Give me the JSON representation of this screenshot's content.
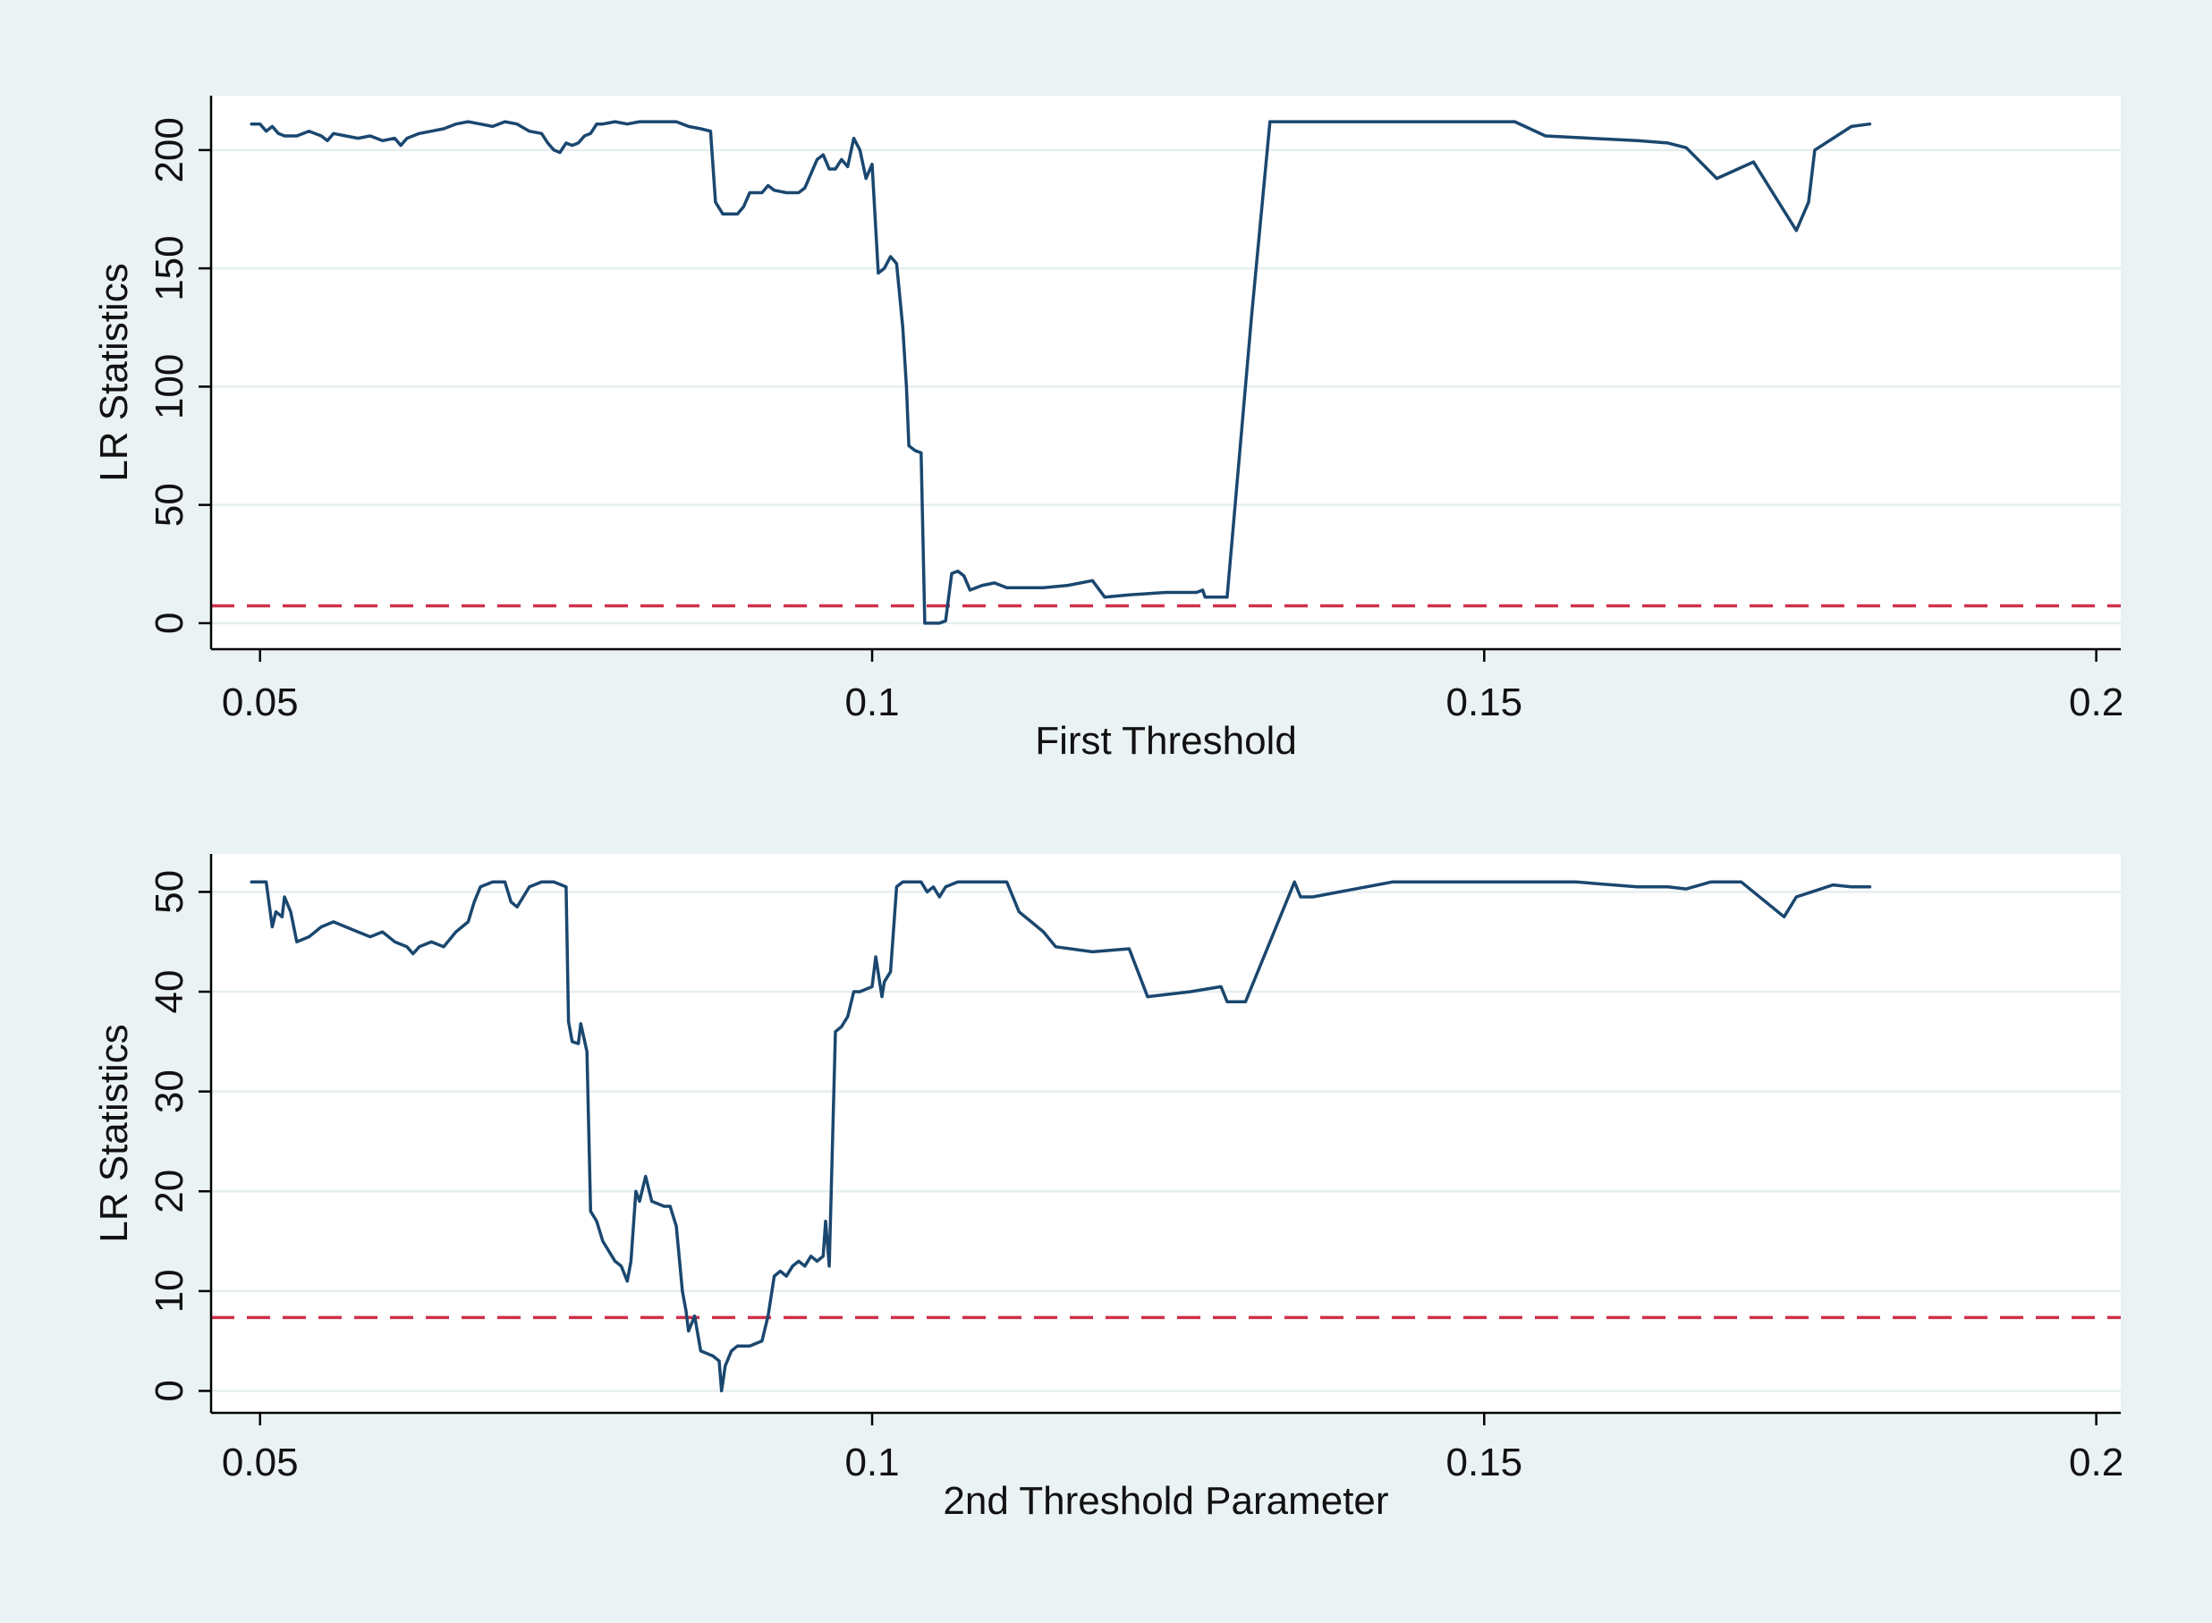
{
  "colors": {
    "outer_background": "#eaf2f3",
    "plot_background": "#ffffff",
    "gridline": "#e6eef0",
    "series_line": "#1a476f",
    "reference_line": "#d0304a",
    "axis": "#000000"
  },
  "chart_data": [
    {
      "type": "line",
      "title": "",
      "xlabel": "First Threshold",
      "ylabel": "LR Statistics",
      "xlim": [
        0.046,
        0.202
      ],
      "ylim": [
        -11,
        223
      ],
      "xticks": [
        0.05,
        0.1,
        0.15,
        0.2
      ],
      "xtick_labels": [
        "0.05",
        "0.1",
        "0.15",
        "0.2"
      ],
      "yticks": [
        0,
        50,
        100,
        150,
        200
      ],
      "ytick_labels": [
        "0",
        "50",
        "100",
        "150",
        "200"
      ],
      "grid": true,
      "reference_line": {
        "y": 7.35,
        "style": "dashed"
      },
      "series": [
        {
          "points": [
            [
              0.0493,
              211
            ],
            [
              0.05,
              211
            ],
            [
              0.0505,
              208
            ],
            [
              0.051,
              210
            ],
            [
              0.0515,
              207
            ],
            [
              0.052,
              206
            ],
            [
              0.053,
              206
            ],
            [
              0.054,
              208
            ],
            [
              0.055,
              206
            ],
            [
              0.0555,
              204
            ],
            [
              0.056,
              207
            ],
            [
              0.057,
              206
            ],
            [
              0.058,
              205
            ],
            [
              0.059,
              206
            ],
            [
              0.06,
              204
            ],
            [
              0.061,
              205
            ],
            [
              0.0615,
              202
            ],
            [
              0.062,
              205
            ],
            [
              0.063,
              207
            ],
            [
              0.064,
              208
            ],
            [
              0.065,
              209
            ],
            [
              0.066,
              211
            ],
            [
              0.067,
              212
            ],
            [
              0.068,
              211
            ],
            [
              0.069,
              210
            ],
            [
              0.07,
              212
            ],
            [
              0.071,
              211
            ],
            [
              0.072,
              208
            ],
            [
              0.073,
              207
            ],
            [
              0.0735,
              203
            ],
            [
              0.074,
              200
            ],
            [
              0.0745,
              199
            ],
            [
              0.075,
              203
            ],
            [
              0.0755,
              202
            ],
            [
              0.076,
              203
            ],
            [
              0.0765,
              206
            ],
            [
              0.077,
              207
            ],
            [
              0.0775,
              211
            ],
            [
              0.078,
              211
            ],
            [
              0.079,
              212
            ],
            [
              0.08,
              211
            ],
            [
              0.081,
              212
            ],
            [
              0.082,
              212
            ],
            [
              0.083,
              212
            ],
            [
              0.084,
              212
            ],
            [
              0.085,
              210
            ],
            [
              0.086,
              209
            ],
            [
              0.0868,
              208
            ],
            [
              0.0872,
              178
            ],
            [
              0.0878,
              173
            ],
            [
              0.089,
              173
            ],
            [
              0.0895,
              176
            ],
            [
              0.09,
              182
            ],
            [
              0.091,
              182
            ],
            [
              0.0915,
              185
            ],
            [
              0.092,
              183
            ],
            [
              0.093,
              182
            ],
            [
              0.094,
              182
            ],
            [
              0.0945,
              184
            ],
            [
              0.0955,
              196
            ],
            [
              0.096,
              198
            ],
            [
              0.0965,
              192
            ],
            [
              0.097,
              192
            ],
            [
              0.0975,
              196
            ],
            [
              0.098,
              193
            ],
            [
              0.0985,
              205
            ],
            [
              0.099,
              200
            ],
            [
              0.0995,
              188
            ],
            [
              0.1,
              194
            ],
            [
              0.1005,
              148
            ],
            [
              0.101,
              150
            ],
            [
              0.1015,
              155
            ],
            [
              0.102,
              152
            ],
            [
              0.1025,
              125
            ],
            [
              0.1028,
              100
            ],
            [
              0.103,
              75
            ],
            [
              0.1035,
              73
            ],
            [
              0.104,
              72
            ],
            [
              0.1043,
              0
            ],
            [
              0.1055,
              0
            ],
            [
              0.106,
              1
            ],
            [
              0.1065,
              21
            ],
            [
              0.107,
              22
            ],
            [
              0.1075,
              20
            ],
            [
              0.108,
              14
            ],
            [
              0.109,
              16
            ],
            [
              0.11,
              17
            ],
            [
              0.111,
              15
            ],
            [
              0.114,
              15
            ],
            [
              0.116,
              16
            ],
            [
              0.118,
              18
            ],
            [
              0.119,
              11
            ],
            [
              0.121,
              12
            ],
            [
              0.124,
              13
            ],
            [
              0.1265,
              13
            ],
            [
              0.127,
              14
            ],
            [
              0.1272,
              11
            ],
            [
              0.129,
              11
            ],
            [
              0.131,
              130
            ],
            [
              0.1325,
              212
            ],
            [
              0.14,
              212
            ],
            [
              0.15,
              212
            ],
            [
              0.1525,
              212
            ],
            [
              0.155,
              206
            ],
            [
              0.1625,
              204
            ],
            [
              0.165,
              203
            ],
            [
              0.1665,
              201
            ],
            [
              0.169,
              188
            ],
            [
              0.172,
              195
            ],
            [
              0.1755,
              166
            ],
            [
              0.1765,
              178
            ],
            [
              0.177,
              200
            ],
            [
              0.1785,
              205
            ],
            [
              0.18,
              210
            ],
            [
              0.1815,
              211
            ]
          ]
        }
      ]
    },
    {
      "type": "line",
      "title": "",
      "xlabel": "2nd Threshold Parameter",
      "ylabel": "LR Statistics",
      "xlim": [
        0.046,
        0.202
      ],
      "ylim": [
        -2.2,
        53.8
      ],
      "xticks": [
        0.05,
        0.1,
        0.15,
        0.2
      ],
      "xtick_labels": [
        "0.05",
        "0.1",
        "0.15",
        "0.2"
      ],
      "yticks": [
        0,
        10,
        20,
        30,
        40,
        50
      ],
      "ytick_labels": [
        "0",
        "10",
        "20",
        "30",
        "40",
        "50"
      ],
      "grid": true,
      "reference_line": {
        "y": 7.35,
        "style": "dashed"
      },
      "series": [
        {
          "points": [
            [
              0.0493,
              51
            ],
            [
              0.0505,
              51
            ],
            [
              0.051,
              46.5
            ],
            [
              0.0513,
              48
            ],
            [
              0.0518,
              47.5
            ],
            [
              0.052,
              49.5
            ],
            [
              0.0525,
              48
            ],
            [
              0.053,
              45
            ],
            [
              0.054,
              45.5
            ],
            [
              0.055,
              46.5
            ],
            [
              0.056,
              47
            ],
            [
              0.057,
              46.5
            ],
            [
              0.058,
              46
            ],
            [
              0.059,
              45.5
            ],
            [
              0.06,
              46
            ],
            [
              0.061,
              45
            ],
            [
              0.062,
              44.5
            ],
            [
              0.0625,
              43.8
            ],
            [
              0.063,
              44.5
            ],
            [
              0.064,
              45
            ],
            [
              0.065,
              44.5
            ],
            [
              0.066,
              46
            ],
            [
              0.067,
              47
            ],
            [
              0.0675,
              49
            ],
            [
              0.068,
              50.5
            ],
            [
              0.069,
              51
            ],
            [
              0.07,
              51
            ],
            [
              0.0705,
              49
            ],
            [
              0.071,
              48.5
            ],
            [
              0.0715,
              49.5
            ],
            [
              0.072,
              50.5
            ],
            [
              0.073,
              51
            ],
            [
              0.074,
              51
            ],
            [
              0.075,
              50.5
            ],
            [
              0.0752,
              37
            ],
            [
              0.0755,
              35
            ],
            [
              0.076,
              34.8
            ],
            [
              0.0762,
              36.8
            ],
            [
              0.0767,
              34
            ],
            [
              0.077,
              18
            ],
            [
              0.0775,
              17
            ],
            [
              0.078,
              15
            ],
            [
              0.079,
              13
            ],
            [
              0.0795,
              12.5
            ],
            [
              0.08,
              11
            ],
            [
              0.0803,
              13
            ],
            [
              0.0807,
              20
            ],
            [
              0.081,
              19
            ],
            [
              0.0815,
              21.5
            ],
            [
              0.082,
              19
            ],
            [
              0.083,
              18.5
            ],
            [
              0.0835,
              18.5
            ],
            [
              0.084,
              16.5
            ],
            [
              0.0845,
              10
            ],
            [
              0.0848,
              8
            ],
            [
              0.085,
              6
            ],
            [
              0.0855,
              7.5
            ],
            [
              0.086,
              4
            ],
            [
              0.087,
              3.5
            ],
            [
              0.0875,
              3
            ],
            [
              0.0877,
              0
            ],
            [
              0.088,
              2.5
            ],
            [
              0.0885,
              4
            ],
            [
              0.089,
              4.5
            ],
            [
              0.09,
              4.5
            ],
            [
              0.091,
              5
            ],
            [
              0.0915,
              7.5
            ],
            [
              0.092,
              11.5
            ],
            [
              0.0925,
              12
            ],
            [
              0.093,
              11.5
            ],
            [
              0.0935,
              12.5
            ],
            [
              0.094,
              13
            ],
            [
              0.0945,
              12.5
            ],
            [
              0.095,
              13.5
            ],
            [
              0.0955,
              13
            ],
            [
              0.096,
              13.5
            ],
            [
              0.0962,
              17
            ],
            [
              0.0965,
              12.5
            ],
            [
              0.097,
              36
            ],
            [
              0.0975,
              36.5
            ],
            [
              0.098,
              37.5
            ],
            [
              0.0985,
              40
            ],
            [
              0.099,
              40
            ],
            [
              0.1,
              40.5
            ],
            [
              0.1003,
              43.5
            ],
            [
              0.1008,
              39.5
            ],
            [
              0.101,
              41
            ],
            [
              0.1015,
              42
            ],
            [
              0.102,
              50.5
            ],
            [
              0.1025,
              51
            ],
            [
              0.104,
              51
            ],
            [
              0.1045,
              50
            ],
            [
              0.105,
              50.5
            ],
            [
              0.1055,
              49.5
            ],
            [
              0.106,
              50.5
            ],
            [
              0.107,
              51
            ],
            [
              0.111,
              51
            ],
            [
              0.112,
              48
            ],
            [
              0.113,
              47
            ],
            [
              0.114,
              46
            ],
            [
              0.115,
              44.5
            ],
            [
              0.118,
              44
            ],
            [
              0.121,
              44.3
            ],
            [
              0.1225,
              39.5
            ],
            [
              0.126,
              40
            ],
            [
              0.1285,
              40.5
            ],
            [
              0.129,
              39
            ],
            [
              0.1305,
              39
            ],
            [
              0.1345,
              51
            ],
            [
              0.135,
              49.5
            ],
            [
              0.136,
              49.5
            ],
            [
              0.1425,
              51
            ],
            [
              0.15,
              51
            ],
            [
              0.1575,
              51
            ],
            [
              0.1625,
              50.5
            ],
            [
              0.165,
              50.5
            ],
            [
              0.1665,
              50.3
            ],
            [
              0.1685,
              51
            ],
            [
              0.171,
              51
            ],
            [
              0.1745,
              47.5
            ],
            [
              0.1755,
              49.5
            ],
            [
              0.1775,
              50.3
            ],
            [
              0.1785,
              50.7
            ],
            [
              0.18,
              50.5
            ],
            [
              0.1815,
              50.5
            ]
          ]
        }
      ]
    }
  ]
}
